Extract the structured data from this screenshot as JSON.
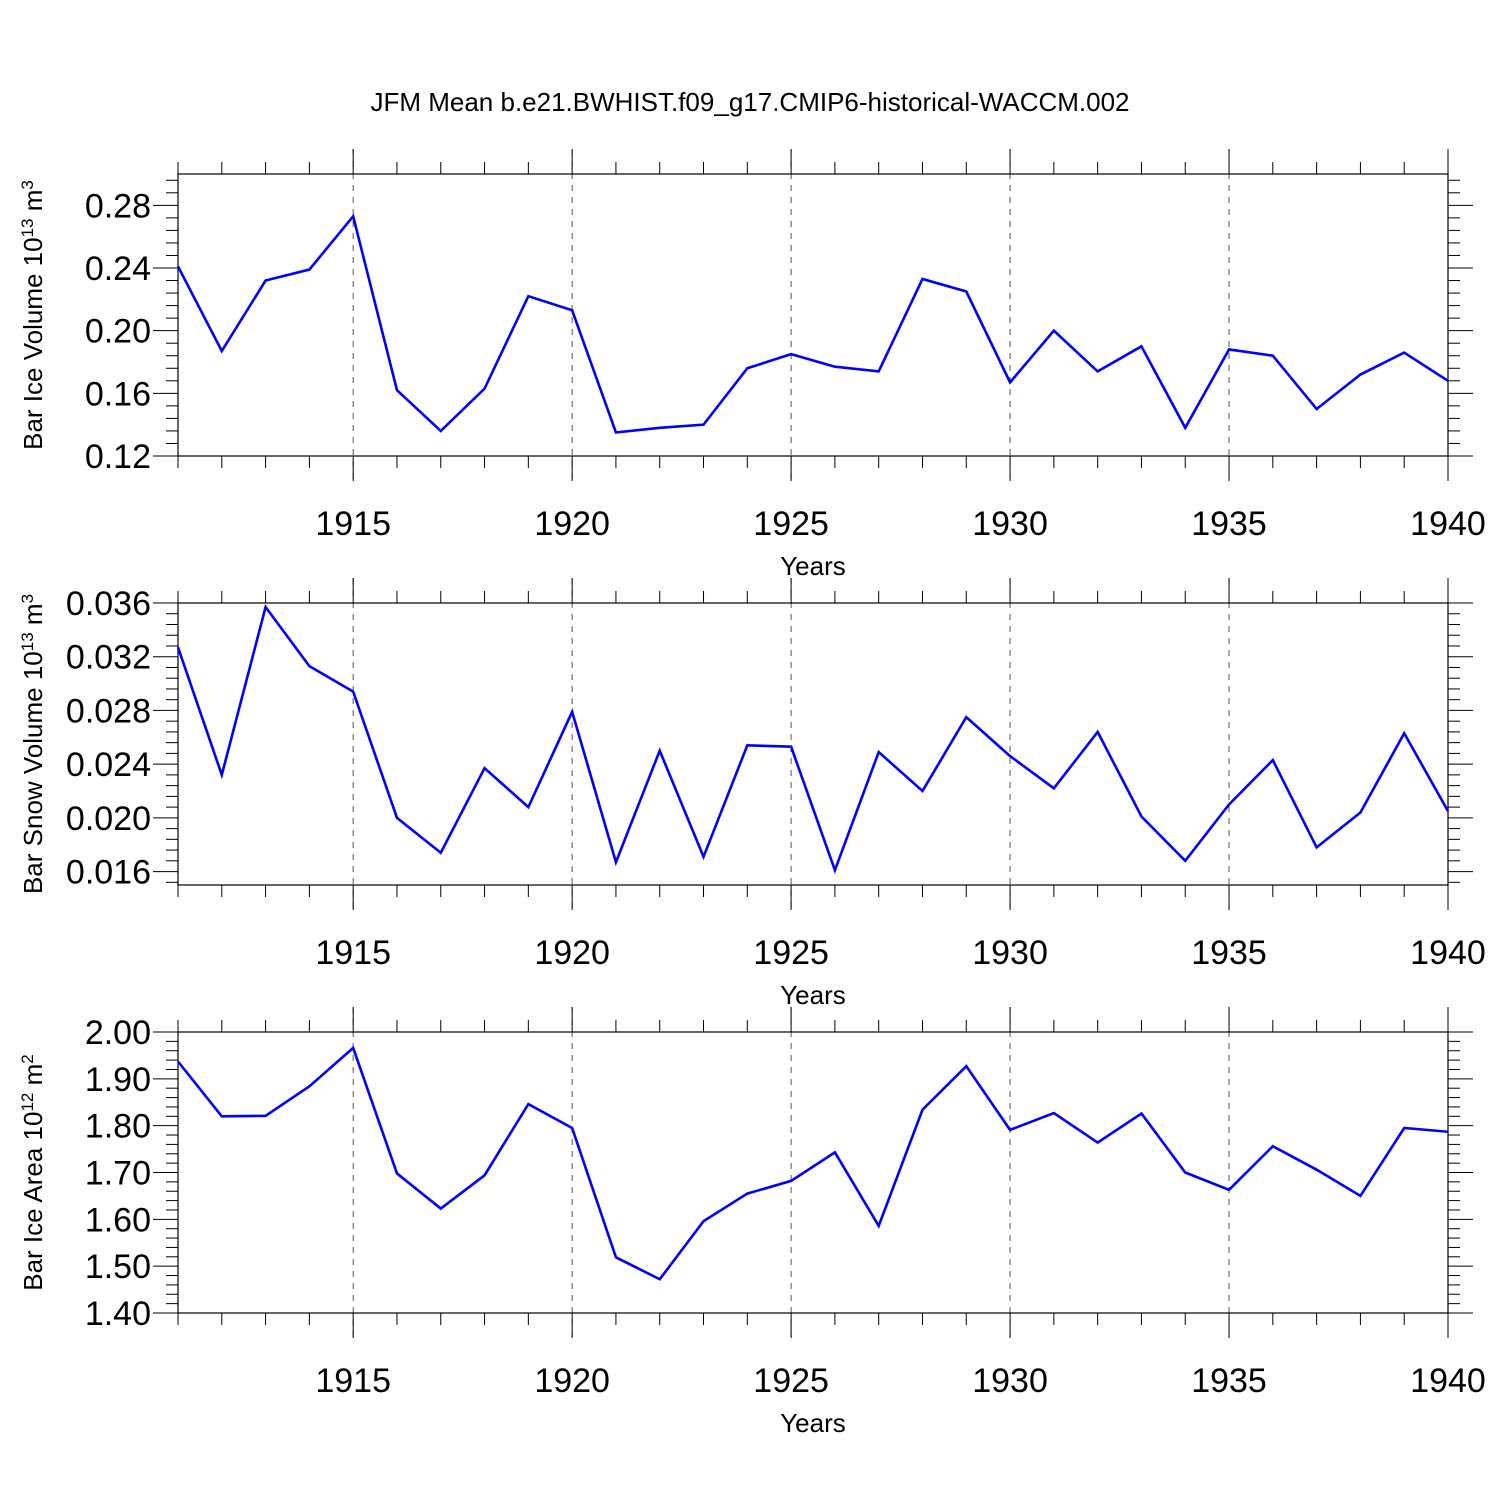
{
  "title": "JFM Mean b.e21.BWHIST.f09_g17.CMIP6-historical-WACCM.002",
  "colors": {
    "line": "#0000ff",
    "axes": "#000000",
    "grid": "#555555",
    "background": "#ffffff"
  },
  "chart_data": [
    {
      "type": "line",
      "ylabel": {
        "main": "Bar Ice Volume 10",
        "exp": "13",
        "unit": " m",
        "unit_exp": "3"
      },
      "xlabel": "Years",
      "xlim": [
        1911,
        1940
      ],
      "ylim": [
        0.12,
        0.3
      ],
      "yticks": [
        "0.12",
        "0.16",
        "0.20",
        "0.24",
        "0.28"
      ],
      "xticks": [
        "1915",
        "1920",
        "1925",
        "1930",
        "1935",
        "1940"
      ],
      "grid": "vertical dashed at major x ticks",
      "x": [
        1911,
        1912,
        1913,
        1914,
        1915,
        1916,
        1917,
        1918,
        1919,
        1920,
        1921,
        1922,
        1923,
        1924,
        1925,
        1926,
        1927,
        1928,
        1929,
        1930,
        1931,
        1932,
        1933,
        1934,
        1935,
        1936,
        1937,
        1938,
        1939,
        1940
      ],
      "series": [
        {
          "values": [
            0.241,
            0.187,
            0.232,
            0.239,
            0.273,
            0.162,
            0.136,
            0.163,
            0.222,
            0.213,
            0.135,
            0.138,
            0.14,
            0.176,
            0.185,
            0.177,
            0.174,
            0.233,
            0.225,
            0.167,
            0.2,
            0.174,
            0.19,
            0.138,
            0.188,
            0.184,
            0.15,
            0.172,
            0.186,
            0.168
          ]
        }
      ]
    },
    {
      "type": "line",
      "ylabel": {
        "main": "Bar Snow Volume 10",
        "exp": "13",
        "unit": " m",
        "unit_exp": "3"
      },
      "xlabel": "Years",
      "xlim": [
        1911,
        1940
      ],
      "ylim": [
        0.015,
        0.036
      ],
      "yticks": [
        "0.016",
        "0.020",
        "0.024",
        "0.028",
        "0.032",
        "0.036"
      ],
      "xticks": [
        "1915",
        "1920",
        "1925",
        "1930",
        "1935",
        "1940"
      ],
      "grid": "vertical dashed at major x ticks",
      "x": [
        1911,
        1912,
        1913,
        1914,
        1915,
        1916,
        1917,
        1918,
        1919,
        1920,
        1921,
        1922,
        1923,
        1924,
        1925,
        1926,
        1927,
        1928,
        1929,
        1930,
        1931,
        1932,
        1933,
        1934,
        1935,
        1936,
        1937,
        1938,
        1939,
        1940
      ],
      "series": [
        {
          "values": [
            0.0327,
            0.0232,
            0.0357,
            0.0313,
            0.0294,
            0.02,
            0.0174,
            0.0237,
            0.0208,
            0.0279,
            0.0167,
            0.025,
            0.0171,
            0.0254,
            0.0253,
            0.0161,
            0.0249,
            0.022,
            0.0275,
            0.0246,
            0.0222,
            0.0264,
            0.0201,
            0.0168,
            0.021,
            0.0243,
            0.0178,
            0.0204,
            0.0263,
            0.0205
          ]
        }
      ]
    },
    {
      "type": "line",
      "ylabel": {
        "main": "Bar Ice Area 10",
        "exp": "12",
        "unit": " m",
        "unit_exp": "2"
      },
      "xlabel": "Years",
      "xlim": [
        1911,
        1940
      ],
      "ylim": [
        1.4,
        2.0
      ],
      "yticks": [
        "1.40",
        "1.50",
        "1.60",
        "1.70",
        "1.80",
        "1.90",
        "2.00"
      ],
      "xticks": [
        "1915",
        "1920",
        "1925",
        "1930",
        "1935",
        "1940"
      ],
      "grid": "vertical dashed at major x ticks",
      "x": [
        1911,
        1912,
        1913,
        1914,
        1915,
        1916,
        1917,
        1918,
        1919,
        1920,
        1921,
        1922,
        1923,
        1924,
        1925,
        1926,
        1927,
        1928,
        1929,
        1930,
        1931,
        1932,
        1933,
        1934,
        1935,
        1936,
        1937,
        1938,
        1939,
        1940
      ],
      "series": [
        {
          "values": [
            1.937,
            1.82,
            1.821,
            1.884,
            1.966,
            1.698,
            1.623,
            1.694,
            1.846,
            1.795,
            1.519,
            1.472,
            1.596,
            1.655,
            1.682,
            1.743,
            1.586,
            1.834,
            1.927,
            1.791,
            1.827,
            1.764,
            1.826,
            1.7,
            1.663,
            1.756,
            1.706,
            1.65,
            1.795,
            1.787
          ]
        }
      ]
    }
  ]
}
